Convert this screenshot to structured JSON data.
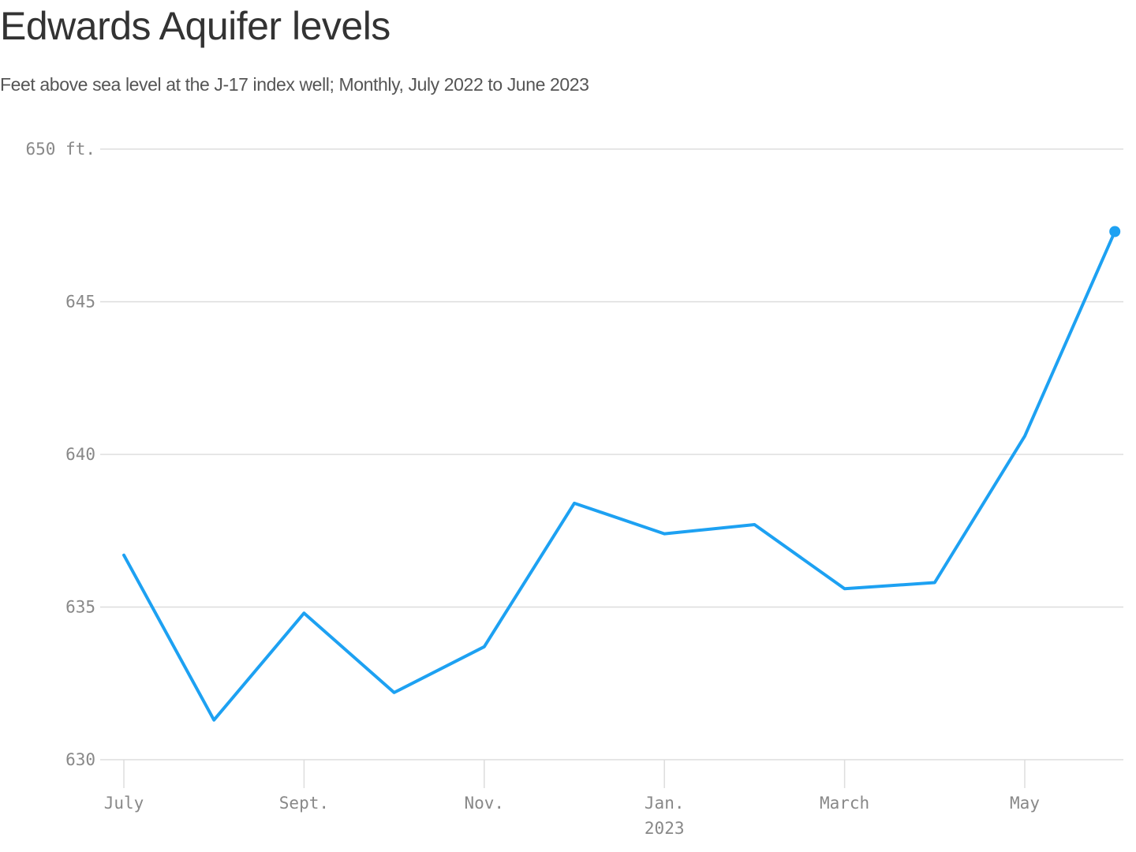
{
  "chart_data": {
    "type": "line",
    "title": "Edwards Aquifer levels",
    "subtitle": "Feet above sea level at the J-17 index well; Monthly, July 2022 to June 2023",
    "xlabel": "",
    "ylabel": "",
    "x": [
      "2022-07",
      "2022-08",
      "2022-09",
      "2022-10",
      "2022-11",
      "2022-12",
      "2023-01",
      "2023-02",
      "2023-03",
      "2023-04",
      "2023-05",
      "2023-06"
    ],
    "values": [
      636.7,
      631.3,
      634.8,
      632.2,
      633.7,
      638.4,
      637.4,
      637.7,
      635.6,
      635.8,
      640.6,
      647.3
    ],
    "ylim": [
      630,
      650
    ],
    "y_ticks": [
      {
        "value": 650,
        "label": "650 ft."
      },
      {
        "value": 645,
        "label": "645"
      },
      {
        "value": 640,
        "label": "640"
      },
      {
        "value": 635,
        "label": "635"
      },
      {
        "value": 630,
        "label": "630"
      }
    ],
    "x_ticks": [
      {
        "x": "2022-07",
        "label": "July",
        "sublabel": ""
      },
      {
        "x": "2022-09",
        "label": "Sept.",
        "sublabel": ""
      },
      {
        "x": "2022-11",
        "label": "Nov.",
        "sublabel": ""
      },
      {
        "x": "2023-01",
        "label": "Jan.",
        "sublabel": "2023"
      },
      {
        "x": "2023-03",
        "label": "March",
        "sublabel": ""
      },
      {
        "x": "2023-05",
        "label": "May",
        "sublabel": ""
      }
    ],
    "grid": true,
    "end_marker": true,
    "colors": {
      "line": "#1da1f2",
      "grid": "#dddddd",
      "tick_text": "#888888"
    }
  }
}
